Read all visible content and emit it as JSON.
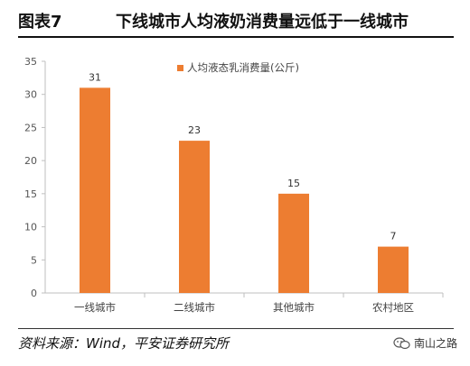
{
  "figure": {
    "label": "图表7",
    "title": "下线城市人均液奶消费量远低于一线城市"
  },
  "footer": {
    "source": "资料来源：Wind，平安证券研究所"
  },
  "watermark": {
    "text": "南山之路",
    "icon": "wechat-icon"
  },
  "chart_data": {
    "type": "bar",
    "categories": [
      "一线城市",
      "二线城市",
      "其他城市",
      "农村地区"
    ],
    "series": [
      {
        "name": "人均液态乳消费量(公斤)",
        "values": [
          31,
          23,
          15,
          7
        ],
        "color": "#ED7D31"
      }
    ],
    "ylim": [
      0,
      35
    ],
    "yticks": [
      0,
      5,
      10,
      15,
      20,
      25,
      30,
      35
    ],
    "data_labels": true,
    "grid": false,
    "legend_position": "top-right"
  }
}
